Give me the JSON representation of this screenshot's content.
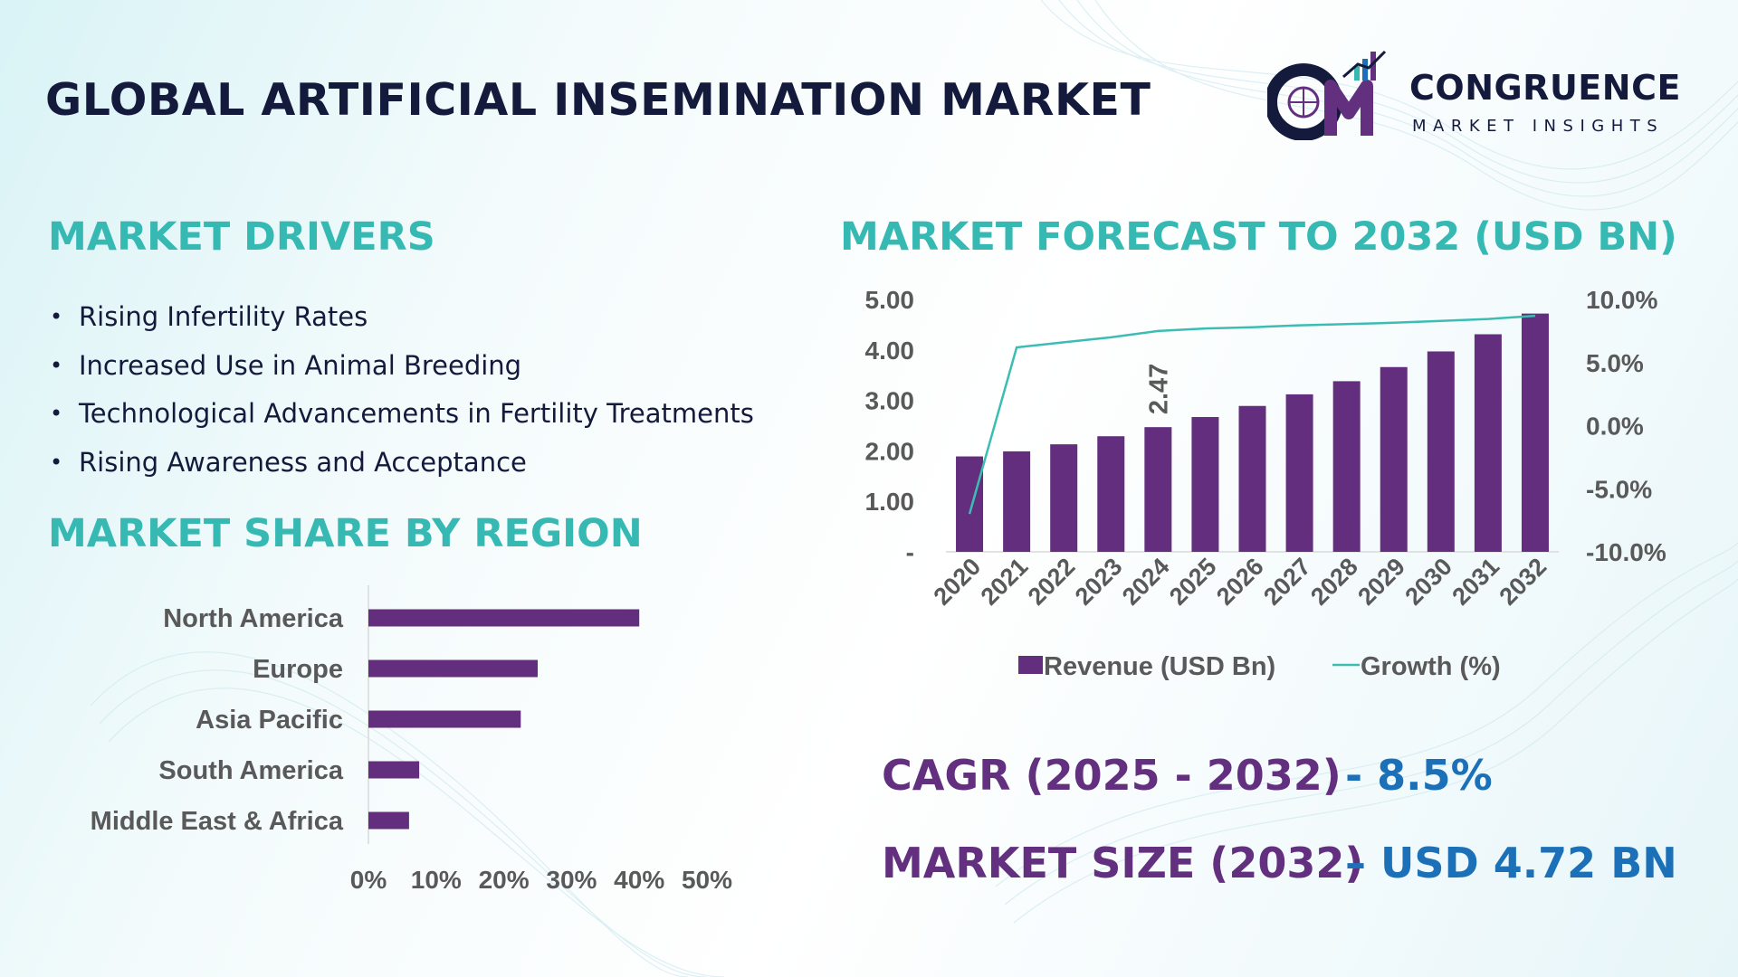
{
  "title": "GLOBAL ARTIFICIAL INSEMINATION MARKET",
  "logo": {
    "name": "CONGRUENCE",
    "subtitle": "MARKET INSIGHTS"
  },
  "drivers": {
    "heading": "MARKET DRIVERS",
    "items": [
      "Rising Infertility Rates",
      "Increased Use in Animal Breeding",
      "Technological Advancements in Fertility Treatments",
      "Rising Awareness and Acceptance"
    ]
  },
  "region": {
    "heading": "MARKET SHARE BY REGION"
  },
  "forecast": {
    "heading": "MARKET FORECAST TO 2032 (USD BN)"
  },
  "kpis": {
    "cagr_label": "CAGR (2025 - 2032)",
    "cagr_value": "- 8.5%",
    "size_label": "MARKET SIZE (2032)",
    "size_value": "– USD 4.72 BN"
  },
  "colors": {
    "bar": "#632e7d",
    "line": "#3bbdb4",
    "heading": "#36b9b3",
    "title": "#141a3c",
    "kpi_label": "#62307e",
    "kpi_value": "#1b70b8"
  },
  "chart_data": [
    {
      "type": "bar",
      "orientation": "horizontal",
      "categories": [
        "North America",
        "Europe",
        "Asia Pacific",
        "South America",
        "Middle East & Africa"
      ],
      "values": [
        40,
        25,
        22.5,
        7.5,
        6
      ],
      "xlim": [
        0,
        50
      ],
      "x_tick_labels": [
        "0%",
        "10%",
        "20%",
        "30%",
        "40%",
        "50%"
      ],
      "grid": false
    },
    {
      "type": "bar",
      "categories": [
        "2020",
        "2021",
        "2022",
        "2023",
        "2024",
        "2025",
        "2026",
        "2027",
        "2028",
        "2029",
        "2030",
        "2031",
        "2032"
      ],
      "series": [
        {
          "name": "Revenue (USD Bn)",
          "type": "bar",
          "axis": "left",
          "values": [
            1.89,
            1.99,
            2.13,
            2.29,
            2.47,
            2.67,
            2.89,
            3.12,
            3.38,
            3.66,
            3.97,
            4.31,
            4.72
          ]
        },
        {
          "name": "Growth (%)",
          "type": "line",
          "axis": "right",
          "values": [
            -7.0,
            6.2,
            6.6,
            7.0,
            7.5,
            7.7,
            7.8,
            7.95,
            8.05,
            8.15,
            8.3,
            8.45,
            8.7
          ]
        }
      ],
      "data_labels": [
        {
          "category": "2024",
          "text": "2.47"
        }
      ],
      "ylim_left": [
        0,
        5
      ],
      "y_left_tick_labels": [
        "-",
        "1.00",
        "2.00",
        "3.00",
        "4.00",
        "5.00"
      ],
      "ylim_right": [
        -10,
        10
      ],
      "y_right_tick_labels": [
        "-10.0%",
        "-5.0%",
        "0.0%",
        "5.0%",
        "10.0%"
      ],
      "legend": "bottom",
      "grid": false
    }
  ]
}
